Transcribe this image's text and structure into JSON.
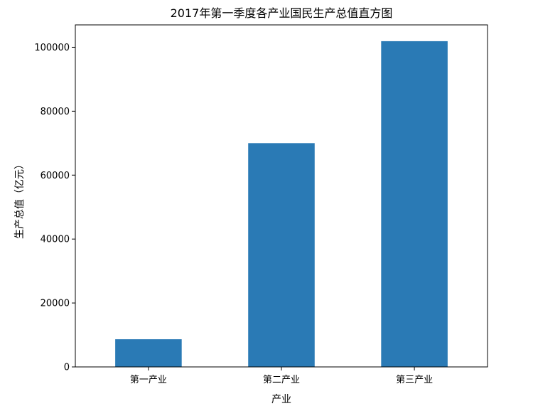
{
  "chart_data": {
    "type": "bar",
    "title": "2017年第一季度各产业国民生产总值直方图",
    "xlabel": "产业",
    "ylabel": "生产总值（亿元）",
    "categories": [
      "第一产业",
      "第二产业",
      "第三产业"
    ],
    "values": [
      8654,
      70005,
      101900
    ],
    "ylim": [
      0,
      107000
    ],
    "yticks": [
      0,
      20000,
      40000,
      60000,
      80000,
      100000
    ],
    "bar_color": "#2a7ab5",
    "grid": false,
    "legend": "none"
  }
}
